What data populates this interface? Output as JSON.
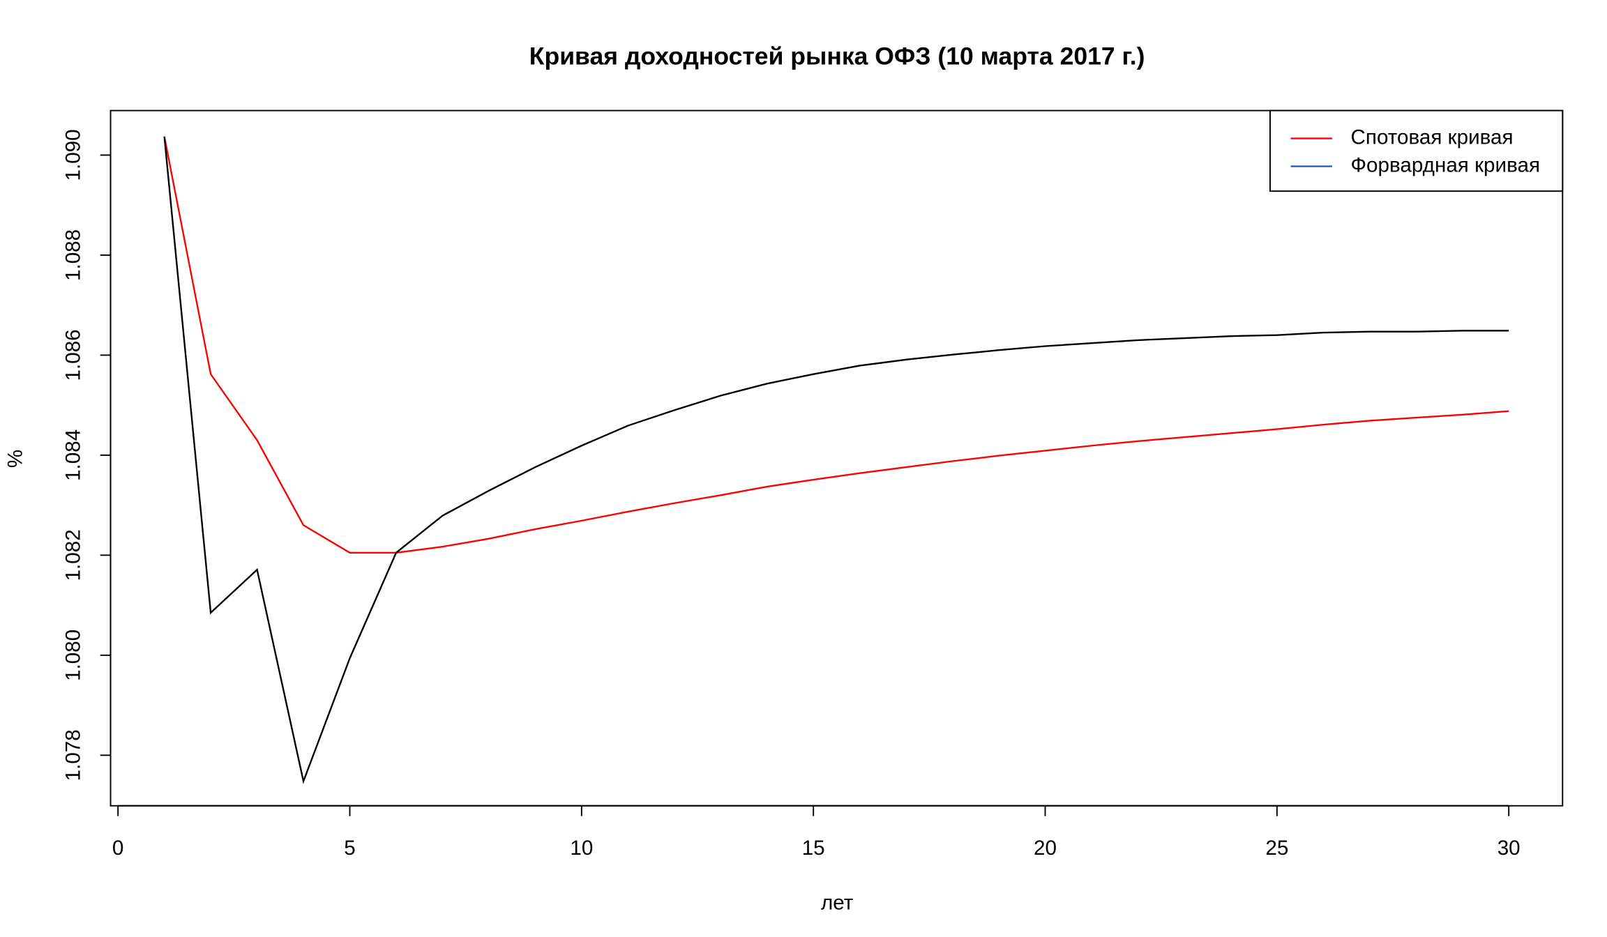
{
  "chart_data": {
    "type": "line",
    "title": "Кривая доходностей рынка ОФЗ (10 марта 2017 г.)",
    "x_label": "лет",
    "y_label": "%",
    "x": [
      1,
      2,
      3,
      4,
      5,
      6,
      7,
      8,
      9,
      10,
      11,
      12,
      13,
      14,
      15,
      16,
      17,
      18,
      19,
      20,
      21,
      22,
      23,
      24,
      25,
      26,
      27,
      28,
      29,
      30
    ],
    "series": [
      {
        "name": "Спотовая кривая",
        "color": "#ff0000",
        "legend_color": "#ff0000",
        "values": [
          1.09037,
          1.08562,
          1.0843,
          1.0826,
          1.08205,
          1.08205,
          1.08217,
          1.08233,
          1.08252,
          1.08269,
          1.08287,
          1.08304,
          1.0832,
          1.08337,
          1.08351,
          1.08364,
          1.08376,
          1.08388,
          1.08399,
          1.08409,
          1.08419,
          1.08428,
          1.08436,
          1.08444,
          1.08452,
          1.08461,
          1.08469,
          1.08475,
          1.08481,
          1.08488
        ]
      },
      {
        "name": "Форвардная кривая",
        "color": "#000000",
        "legend_color": "#1f5fbf",
        "values": [
          1.09037,
          1.08085,
          1.08171,
          1.07748,
          1.07994,
          1.08205,
          1.08279,
          1.08329,
          1.08376,
          1.08419,
          1.08459,
          1.0849,
          1.08519,
          1.08543,
          1.08562,
          1.08579,
          1.08591,
          1.08601,
          1.0861,
          1.08618,
          1.08624,
          1.0863,
          1.08634,
          1.08638,
          1.0864,
          1.08645,
          1.08647,
          1.08647,
          1.08649,
          1.08649
        ]
      }
    ],
    "xlim": [
      -0.16,
      31.16
    ],
    "xticks": [
      0,
      5,
      10,
      15,
      20,
      25,
      30
    ],
    "ylim": [
      1.07699,
      1.09089
    ],
    "yticks": [
      1.078,
      {
        "value": 1.08,
        "label": "1.080"
      },
      1.082,
      1.084,
      1.086,
      1.088,
      {
        "value": 1.09,
        "label": "1.090"
      }
    ],
    "legend": "top-right"
  }
}
